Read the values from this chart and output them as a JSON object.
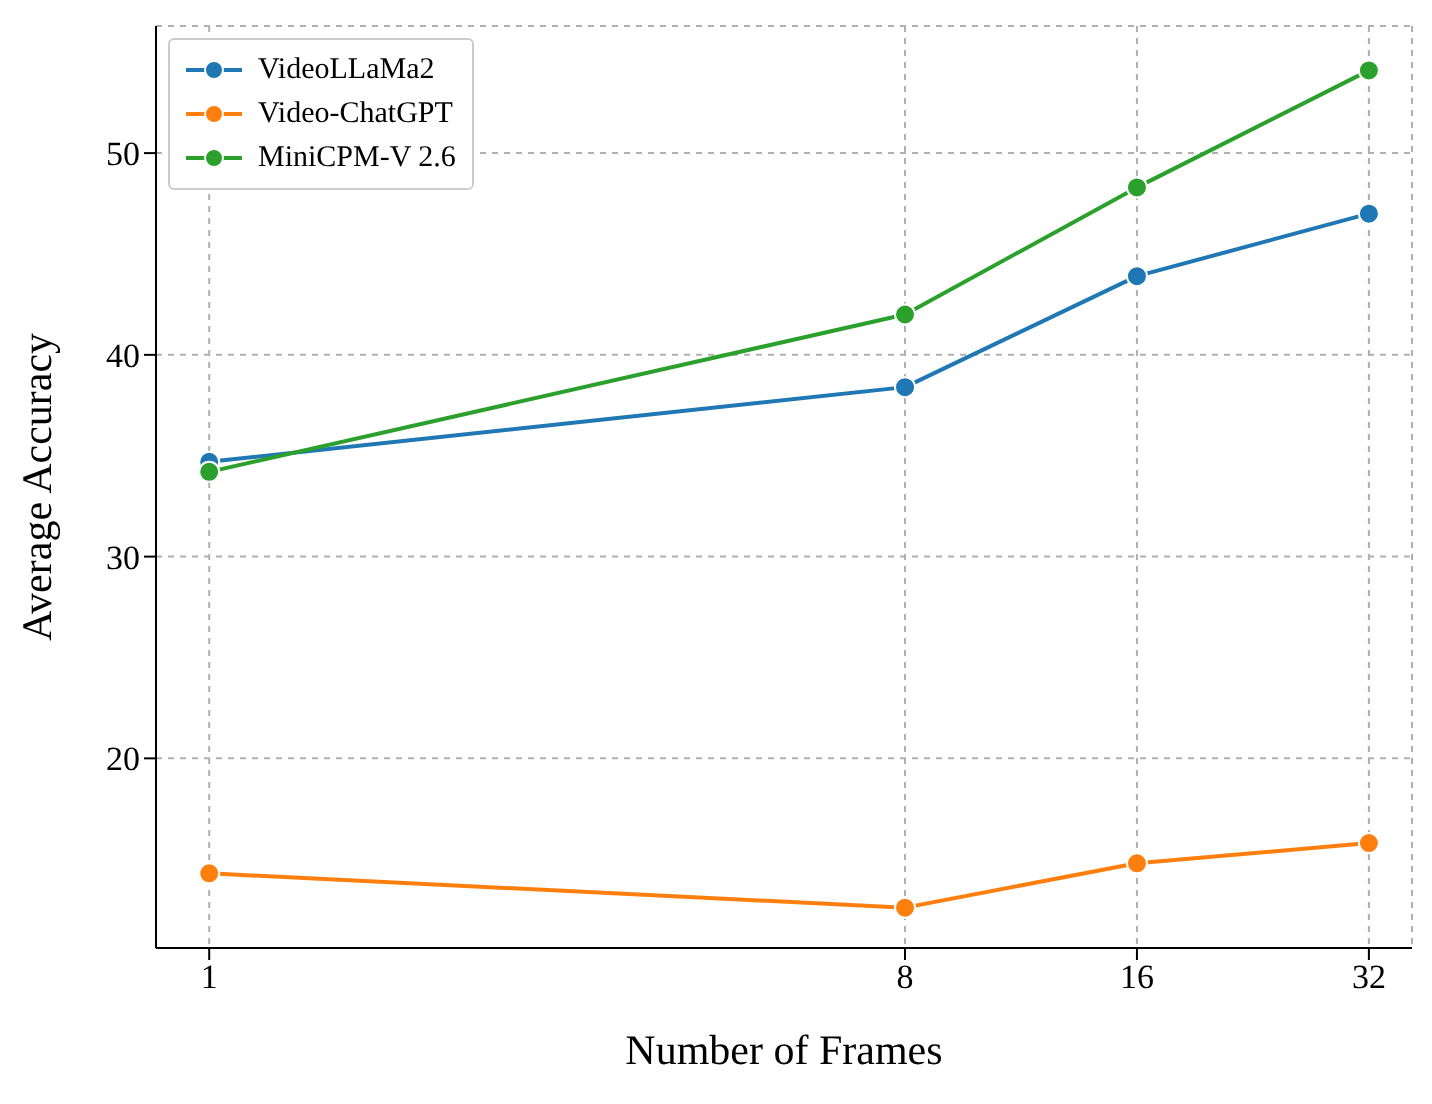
{
  "chart_data": {
    "type": "line",
    "xlabel": "Number of Frames",
    "ylabel": "Average Accuracy",
    "x": [
      1,
      8,
      16,
      32
    ],
    "log": "x",
    "xlim": [
      0.853,
      36.4
    ],
    "xticks": [
      1,
      8,
      16,
      32
    ],
    "ylim": [
      10.6,
      56.3
    ],
    "yticks": [
      20,
      30,
      40,
      50
    ],
    "grid": true,
    "legend": "top left",
    "marker": "circle",
    "line_style": "solid",
    "series": [
      {
        "name": "VideoLLaMa2",
        "color": "#1f77b4",
        "values": [
          34.7,
          38.4,
          43.9,
          47.0
        ]
      },
      {
        "name": "Video-ChatGPT",
        "color": "#ff7f0e",
        "values": [
          14.3,
          12.6,
          14.8,
          15.8
        ]
      },
      {
        "name": "MiniCPM-V 2.6",
        "color": "#2ca02c",
        "values": [
          34.2,
          42.0,
          48.3,
          54.1
        ]
      }
    ]
  }
}
